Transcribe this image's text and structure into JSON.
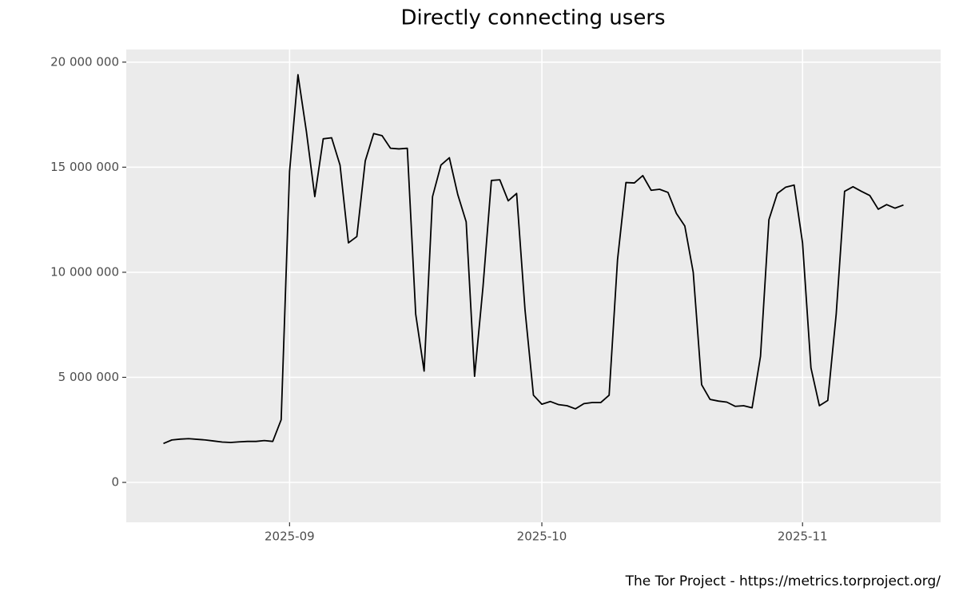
{
  "chart_data": {
    "type": "line",
    "title": "Directly connecting users",
    "caption": "The Tor Project - https://metrics.torproject.org/",
    "categories": [
      null,
      null,
      null,
      null,
      null,
      null,
      null,
      null,
      null,
      null,
      null,
      null,
      null,
      null,
      null,
      "2025-09",
      null,
      null,
      null,
      null,
      null,
      null,
      null,
      null,
      null,
      null,
      null,
      null,
      null,
      null,
      null,
      null,
      null,
      null,
      null,
      null,
      null,
      null,
      null,
      null,
      null,
      null,
      null,
      null,
      null,
      "2025-10",
      null,
      null,
      null,
      null,
      null,
      null,
      null,
      null,
      null,
      null,
      null,
      null,
      null,
      null,
      null,
      null,
      null,
      null,
      null,
      null,
      null,
      null,
      null,
      null,
      null,
      null,
      null,
      null,
      null,
      null,
      "2025-11",
      null,
      null,
      null,
      null,
      null,
      null,
      null,
      null,
      null,
      null,
      null,
      null
    ],
    "values": [
      1850000,
      2020000,
      2060000,
      2080000,
      2050000,
      2020000,
      1970000,
      1920000,
      1900000,
      1930000,
      1950000,
      1950000,
      1990000,
      1950000,
      2980000,
      14800000,
      19400000,
      16700000,
      13600000,
      16350000,
      16400000,
      15100000,
      11400000,
      11700000,
      15300000,
      16600000,
      16500000,
      15900000,
      15870000,
      15900000,
      8000000,
      5300000,
      13600000,
      15100000,
      15450000,
      13700000,
      12400000,
      5050000,
      9300000,
      14370000,
      14400000,
      13400000,
      13750000,
      8200000,
      4150000,
      3720000,
      3850000,
      3700000,
      3650000,
      3500000,
      3750000,
      3800000,
      3800000,
      4150000,
      10600000,
      14270000,
      14250000,
      14600000,
      13900000,
      13950000,
      13800000,
      12800000,
      12200000,
      10000000,
      4650000,
      3950000,
      3870000,
      3820000,
      3620000,
      3650000,
      3550000,
      6000000,
      12500000,
      13750000,
      14050000,
      14150000,
      11400000,
      5450000,
      3650000,
      3900000,
      8000000,
      13850000,
      14070000,
      13850000,
      13650000,
      13000000,
      13220000,
      13050000,
      13200000
    ],
    "color": "#000000",
    "ylim": [
      -1900000,
      20600000
    ],
    "yticks": [
      {
        "value": 0,
        "label": "0"
      },
      {
        "value": 5000000,
        "label": "5 000 000"
      },
      {
        "value": 10000000,
        "label": "10 000 000"
      },
      {
        "value": 15000000,
        "label": "15 000 000"
      },
      {
        "value": 20000000,
        "label": "20 000 000"
      }
    ],
    "grid": true
  }
}
